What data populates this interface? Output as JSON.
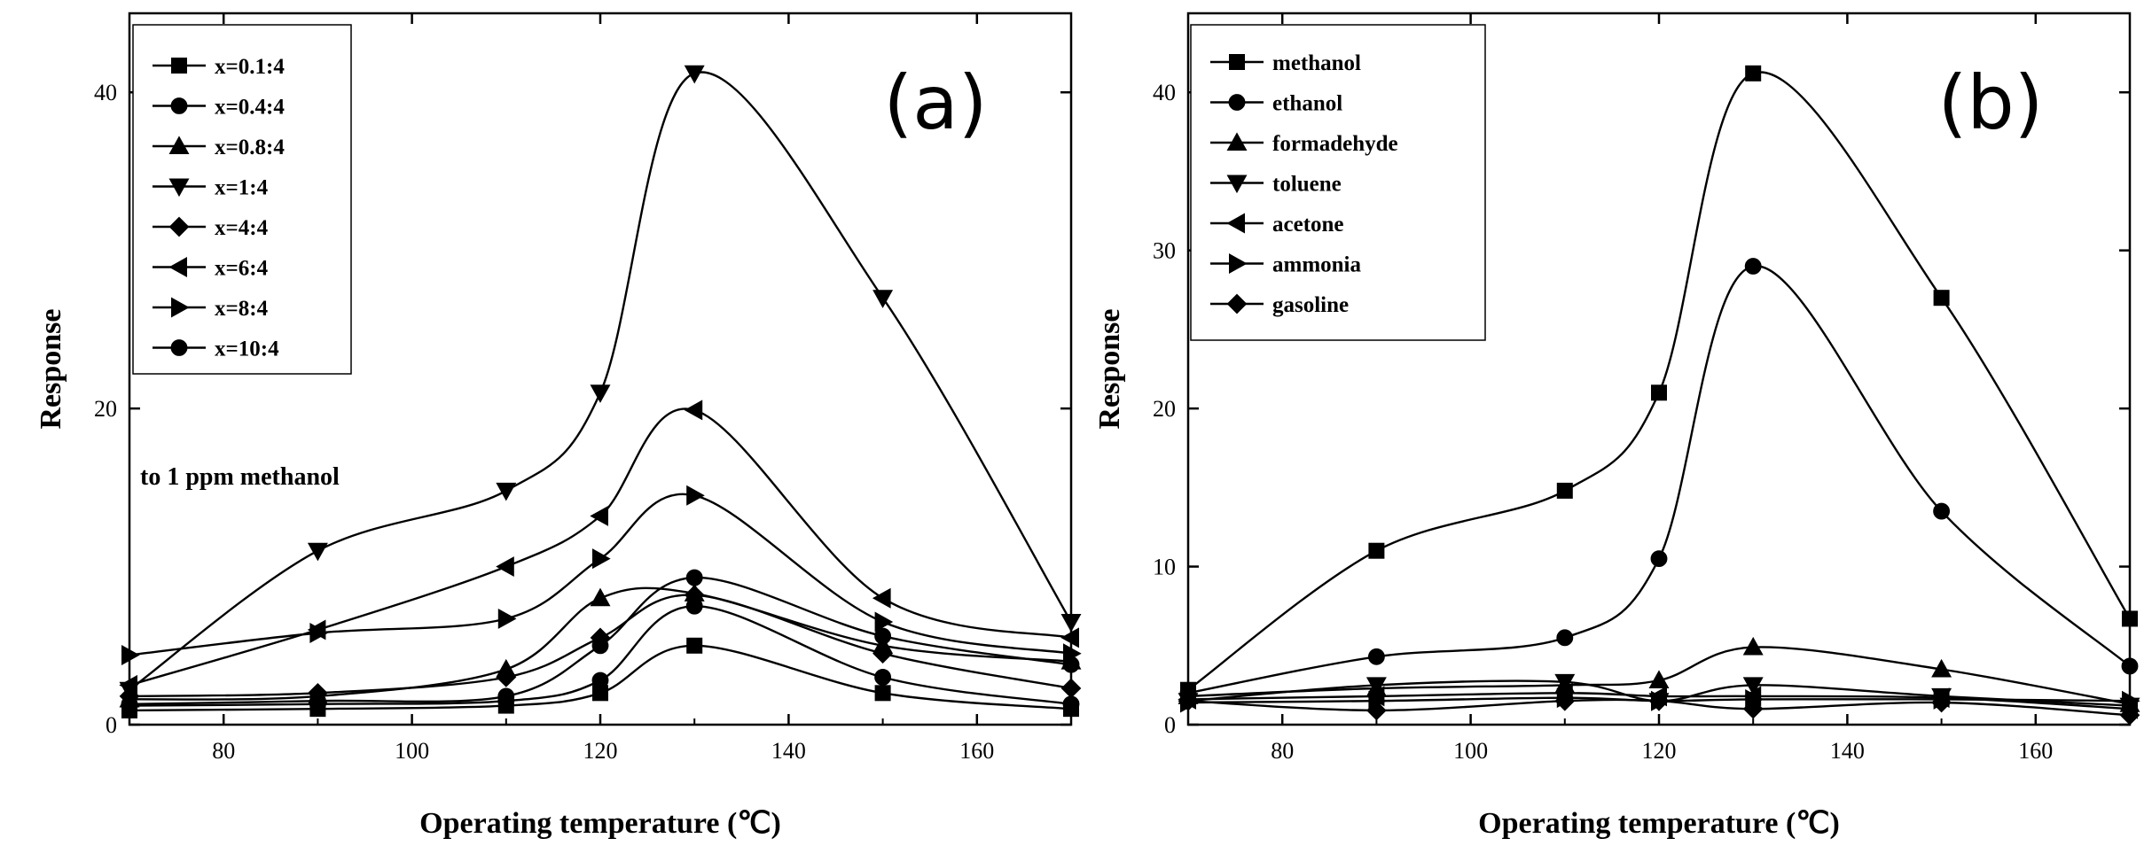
{
  "chart_data": [
    {
      "type": "line",
      "panel_label": "(a)",
      "xlabel": "Operating temperature (℃)",
      "ylabel": "Response",
      "xlim": [
        70,
        170
      ],
      "ylim": [
        0,
        45
      ],
      "xticks": [
        80,
        100,
        120,
        140,
        160
      ],
      "yticks": [
        0,
        20,
        40
      ],
      "annotation": "to 1 ppm methanol",
      "legend_position": "top-left",
      "x": [
        70,
        90,
        110,
        120,
        130,
        150,
        170
      ],
      "series": [
        {
          "name": "x=0.1:4",
          "marker": "square",
          "values": [
            0.9,
            1.0,
            1.2,
            2.0,
            5.0,
            2.0,
            1.0
          ]
        },
        {
          "name": "x=0.4:4",
          "marker": "circle",
          "values": [
            1.2,
            1.3,
            1.5,
            2.8,
            7.5,
            3.0,
            1.3
          ]
        },
        {
          "name": "x=0.8:4",
          "marker": "triangle-up",
          "values": [
            1.6,
            1.8,
            3.5,
            8.0,
            8.3,
            5.0,
            4.0
          ]
        },
        {
          "name": "x=1:4",
          "marker": "triangle-down",
          "values": [
            2.2,
            11.0,
            14.8,
            21.0,
            41.2,
            27.0,
            6.5
          ]
        },
        {
          "name": "x=4:4",
          "marker": "diamond",
          "values": [
            1.8,
            2.0,
            3.0,
            5.5,
            8.2,
            4.5,
            2.3
          ]
        },
        {
          "name": "x=6:4",
          "marker": "triangle-left",
          "values": [
            2.5,
            6.0,
            10.0,
            13.2,
            19.9,
            8.0,
            5.5
          ]
        },
        {
          "name": "x=8:4",
          "marker": "triangle-right",
          "values": [
            4.4,
            5.8,
            6.7,
            10.5,
            14.5,
            6.5,
            4.5
          ]
        },
        {
          "name": "x=10:4",
          "marker": "circle",
          "values": [
            1.3,
            1.5,
            1.8,
            5.0,
            9.3,
            5.6,
            3.8
          ]
        }
      ]
    },
    {
      "type": "line",
      "panel_label": "(b)",
      "xlabel": "Operating temperature (℃)",
      "ylabel": "Response",
      "xlim": [
        70,
        170
      ],
      "ylim": [
        0,
        45
      ],
      "xticks": [
        80,
        100,
        120,
        140,
        160
      ],
      "yticks": [
        0,
        10,
        20,
        30,
        40
      ],
      "legend_position": "top-left",
      "x": [
        70,
        90,
        110,
        120,
        130,
        150,
        170
      ],
      "series": [
        {
          "name": "methanol",
          "marker": "square",
          "values": [
            2.2,
            11.0,
            14.8,
            21.0,
            41.2,
            27.0,
            6.7
          ]
        },
        {
          "name": "ethanol",
          "marker": "circle",
          "values": [
            2.0,
            4.3,
            5.5,
            10.5,
            29.0,
            13.5,
            3.7
          ]
        },
        {
          "name": "formadehyde",
          "marker": "triangle-up",
          "values": [
            1.8,
            2.3,
            2.5,
            2.8,
            4.9,
            3.5,
            1.3
          ]
        },
        {
          "name": "toluene",
          "marker": "triangle-down",
          "values": [
            1.5,
            2.5,
            2.7,
            1.5,
            2.5,
            1.8,
            1.2
          ]
        },
        {
          "name": "acetone",
          "marker": "triangle-left",
          "values": [
            1.6,
            1.8,
            2.0,
            1.8,
            1.8,
            1.7,
            1.0
          ]
        },
        {
          "name": "ammonia",
          "marker": "triangle-right",
          "values": [
            1.4,
            1.5,
            1.7,
            1.5,
            1.6,
            1.6,
            1.5
          ]
        },
        {
          "name": "gasoline",
          "marker": "diamond",
          "values": [
            1.5,
            0.9,
            1.5,
            1.5,
            1.0,
            1.4,
            0.6
          ]
        }
      ]
    }
  ]
}
